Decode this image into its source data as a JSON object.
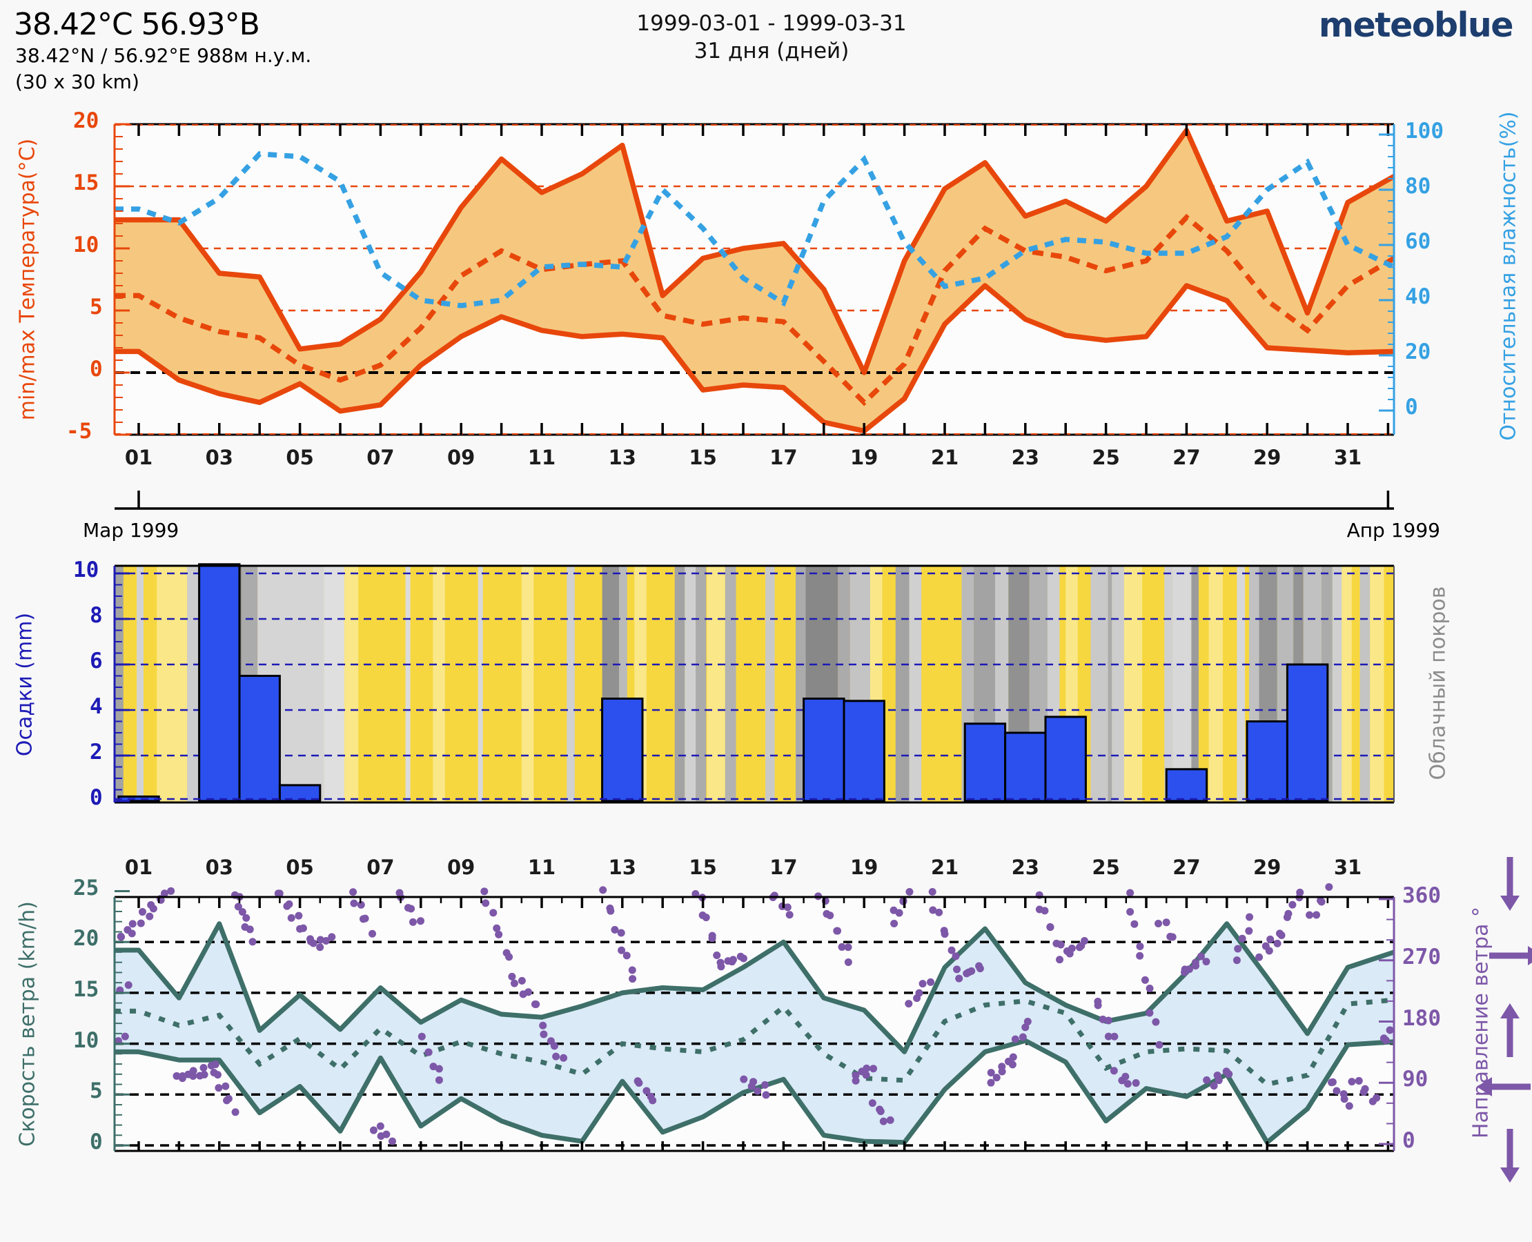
{
  "header": {
    "title": "38.42°С 56.93°В",
    "subtitle": "38.42°N / 56.92°E   988м н.у.м.",
    "area": "(30 x 30 km)",
    "date_range": "1999-03-01 - 1999-03-31",
    "days_count": "31 дня (дней)",
    "logo": "meteoblue"
  },
  "timeline": {
    "start_label": "Мар 1999",
    "end_label": "Апр 1999"
  },
  "day_labels": [
    "01",
    "03",
    "05",
    "07",
    "09",
    "11",
    "13",
    "15",
    "17",
    "19",
    "21",
    "23",
    "25",
    "27",
    "29",
    "31"
  ],
  "colors": {
    "orange": "#e8470b",
    "band_orange": "#f6c87f",
    "blue_hum": "#35a1e3",
    "navy": "#1d1bb5",
    "bar_blue": "#2b50ee",
    "yellow": "#f6d73f",
    "pale_yellow": "#fae788",
    "gray_label": "#8c8c8c",
    "teal": "#3e6f69",
    "wind_band": "#daeaf6",
    "purple": "#7d57a8",
    "black": "#000000",
    "logo_blue": "#1d3e6e"
  },
  "chart_data": [
    {
      "type": "area",
      "name": "temperature-humidity",
      "ylabel_left": "min/max Температура(°C)",
      "ylabel_right": "Относительная влажность(%)",
      "yticks_left": [
        20,
        15,
        10,
        5,
        0,
        -5
      ],
      "ylim_left": [
        -5,
        20
      ],
      "yticks_right": [
        100,
        80,
        60,
        40,
        20,
        0
      ],
      "ylim_right": [
        0,
        100
      ],
      "x_days": 31,
      "series": [
        {
          "name": "tmax",
          "values": [
            12.3,
            12.3,
            8.0,
            7.7,
            1.9,
            2.3,
            4.3,
            8.1,
            13.3,
            17.2,
            14.5,
            16.0,
            18.3,
            6.2,
            9.2,
            10.0,
            10.4,
            6.7,
            0.0,
            9.0,
            14.8,
            16.9,
            12.6,
            13.8,
            12.2,
            15.0,
            19.5,
            12.2,
            13.0,
            4.8,
            13.7,
            15.8
          ]
        },
        {
          "name": "tmin",
          "values": [
            1.7,
            -0.6,
            -1.7,
            -2.4,
            -0.9,
            -3.1,
            -2.6,
            0.6,
            2.9,
            4.5,
            3.4,
            2.9,
            3.1,
            2.8,
            -1.4,
            -1.0,
            -1.2,
            -4.0,
            -4.7,
            -2.1,
            3.9,
            7.0,
            4.3,
            3.0,
            2.6,
            2.9,
            7.0,
            5.8,
            2.0,
            1.8,
            1.6,
            1.7
          ]
        },
        {
          "name": "tmean",
          "values": [
            6.2,
            4.4,
            3.3,
            2.8,
            0.6,
            -0.6,
            0.6,
            3.6,
            7.8,
            9.8,
            8.3,
            8.7,
            9.0,
            4.6,
            3.9,
            4.4,
            4.1,
            0.9,
            -2.4,
            0.7,
            8.2,
            11.6,
            9.8,
            9.3,
            8.2,
            9.0,
            12.5,
            9.8,
            5.8,
            3.4,
            7.0,
            9.2
          ]
        },
        {
          "name": "humidity",
          "values": [
            73,
            68,
            77,
            93,
            92,
            83,
            50,
            40,
            38,
            40,
            52,
            53,
            52,
            80,
            66,
            48,
            39,
            76,
            91,
            61,
            45,
            48,
            58,
            62,
            61,
            57,
            57,
            63,
            80,
            90,
            60,
            52
          ]
        }
      ]
    },
    {
      "type": "bar",
      "name": "precipitation-cloud",
      "ylabel_left": "Осадки (mm)",
      "ylabel_right": "Облачный покров",
      "yticks_left": [
        10,
        8,
        6,
        4,
        2,
        0
      ],
      "ylim_left": [
        0,
        10.5
      ],
      "values": [
        0.2,
        0,
        10.9,
        5.5,
        0.7,
        0,
        0,
        0,
        0,
        0,
        0,
        0,
        4.5,
        0,
        0,
        0,
        0,
        4.5,
        4.4,
        0,
        0,
        3.4,
        3.0,
        3.7,
        0,
        0,
        1.4,
        0,
        3.5,
        6.0,
        0
      ],
      "cloud_stripes": [
        [
          0.42,
          0.62,
          0.5
        ],
        [
          0.95,
          1.12,
          0.18
        ],
        [
          2.2,
          2.55,
          0.22
        ],
        [
          2.8,
          3.05,
          0.3
        ],
        [
          3.05,
          3.55,
          0.68
        ],
        [
          3.55,
          3.95,
          0.45
        ],
        [
          3.95,
          5.6,
          0.17
        ],
        [
          5.6,
          6.1,
          0.1
        ],
        [
          7.62,
          7.74,
          0.12
        ],
        [
          9.42,
          9.54,
          0.15
        ],
        [
          11.62,
          11.82,
          0.2
        ],
        [
          12.5,
          12.92,
          0.62
        ],
        [
          12.92,
          13.12,
          0.35
        ],
        [
          14.3,
          14.55,
          0.5
        ],
        [
          14.55,
          14.82,
          0.2
        ],
        [
          14.82,
          15.08,
          0.45
        ],
        [
          15.55,
          15.82,
          0.4
        ],
        [
          16.55,
          16.78,
          0.25
        ],
        [
          17.3,
          17.55,
          0.45
        ],
        [
          17.55,
          18.35,
          0.68
        ],
        [
          18.35,
          18.65,
          0.45
        ],
        [
          18.65,
          19.15,
          0.28
        ],
        [
          19.78,
          20.12,
          0.5
        ],
        [
          20.12,
          20.42,
          0.2
        ],
        [
          21.42,
          21.72,
          0.35
        ],
        [
          21.72,
          22.25,
          0.5
        ],
        [
          22.25,
          22.58,
          0.25
        ],
        [
          22.58,
          23.1,
          0.62
        ],
        [
          23.1,
          23.55,
          0.4
        ],
        [
          23.55,
          23.85,
          0.2
        ],
        [
          24.62,
          25.05,
          0.25
        ],
        [
          25.05,
          25.15,
          0.45
        ],
        [
          25.15,
          25.45,
          0.22
        ],
        [
          26.45,
          26.65,
          0.2
        ],
        [
          26.65,
          27.12,
          0.15
        ],
        [
          27.12,
          27.3,
          0.55
        ],
        [
          28.25,
          28.45,
          0.15
        ],
        [
          28.55,
          28.8,
          0.3
        ],
        [
          28.8,
          29.25,
          0.6
        ],
        [
          29.25,
          29.65,
          0.35
        ],
        [
          29.65,
          29.9,
          0.6
        ],
        [
          29.9,
          30.35,
          0.3
        ],
        [
          30.35,
          30.62,
          0.45
        ],
        [
          30.62,
          30.85,
          0.2
        ],
        [
          31.3,
          31.55,
          0.28
        ]
      ],
      "pale_stripes": [
        [
          1.45,
          2.2
        ],
        [
          6.1,
          6.45
        ],
        [
          8.3,
          8.6
        ],
        [
          10.5,
          10.8
        ],
        [
          13.3,
          13.6
        ],
        [
          15.1,
          15.55
        ],
        [
          19.15,
          19.45
        ],
        [
          24.0,
          24.3
        ],
        [
          25.45,
          25.9
        ],
        [
          27.55,
          27.9
        ],
        [
          30.85,
          31.1
        ],
        [
          31.55,
          31.9
        ]
      ]
    },
    {
      "type": "line",
      "name": "wind",
      "ylabel_left": "Скорость ветра (km/h)",
      "ylabel_right": "Направление ветра °",
      "yticks_left": [
        25,
        20,
        15,
        10,
        5,
        0
      ],
      "ylim_left": [
        0,
        25
      ],
      "yticks_right": [
        360,
        270,
        180,
        90,
        0
      ],
      "ylim_right": [
        0,
        360
      ],
      "series": [
        {
          "name": "wind_max",
          "values": [
            19.2,
            14.5,
            21.8,
            11.3,
            14.8,
            11.4,
            15.5,
            12.1,
            14.3,
            12.9,
            12.6,
            13.7,
            15.0,
            15.5,
            15.3,
            17.5,
            20.0,
            14.5,
            13.3,
            9.2,
            17.5,
            21.3,
            16.0,
            13.8,
            12.2,
            13.0,
            17.0,
            21.8,
            16.5,
            11.0,
            17.5,
            19.0
          ]
        },
        {
          "name": "wind_min",
          "values": [
            9.2,
            8.4,
            8.4,
            3.2,
            5.8,
            1.4,
            8.6,
            1.9,
            4.6,
            2.4,
            1.0,
            0.4,
            6.3,
            1.3,
            2.8,
            5.2,
            6.5,
            1.0,
            0.4,
            0.3,
            5.5,
            9.2,
            10.3,
            8.2,
            2.4,
            5.6,
            4.8,
            7.0,
            0.3,
            3.6,
            9.9,
            10.2
          ]
        },
        {
          "name": "wind_mean",
          "values": [
            13.2,
            11.8,
            12.8,
            8.0,
            10.5,
            7.5,
            11.5,
            8.8,
            10.2,
            9.0,
            8.2,
            7.0,
            10.0,
            9.5,
            9.2,
            10.4,
            13.6,
            9.0,
            6.6,
            6.4,
            12.2,
            13.8,
            14.2,
            13.0,
            7.6,
            9.2,
            9.5,
            9.3,
            6.0,
            6.9,
            13.9,
            14.3
          ]
        }
      ],
      "direction_segments": [
        [
          0.42,
          0.9,
          300,
          318,
          6
        ],
        [
          0.45,
          0.7,
          236,
          228,
          3
        ],
        [
          0.5,
          0.62,
          153,
          158,
          2
        ],
        [
          1.05,
          1.75,
          330,
          372,
          9
        ],
        [
          1.95,
          2.95,
          97,
          112,
          12
        ],
        [
          2.95,
          3.35,
          97,
          52,
          6
        ],
        [
          3.4,
          3.8,
          370,
          302,
          8
        ],
        [
          4.45,
          5.3,
          372,
          296,
          10
        ],
        [
          5.35,
          5.75,
          290,
          304,
          5
        ],
        [
          6.3,
          6.75,
          368,
          315,
          6
        ],
        [
          6.85,
          7.25,
          26,
          6,
          5
        ],
        [
          7.45,
          7.95,
          370,
          322,
          6
        ],
        [
          8.05,
          8.5,
          152,
          96,
          6
        ],
        [
          9.55,
          10.3,
          372,
          252,
          8
        ],
        [
          10.35,
          10.9,
          242,
          202,
          6
        ],
        [
          11.0,
          11.5,
          172,
          122,
          6
        ],
        [
          12.55,
          13.3,
          368,
          242,
          9
        ],
        [
          13.35,
          13.8,
          96,
          62,
          5
        ],
        [
          14.85,
          15.35,
          372,
          282,
          7
        ],
        [
          15.4,
          16.0,
          262,
          276,
          7
        ],
        [
          16.05,
          16.6,
          92,
          78,
          6
        ],
        [
          16.7,
          17.2,
          368,
          338,
          5
        ],
        [
          17.9,
          18.65,
          366,
          272,
          9
        ],
        [
          18.75,
          19.2,
          95,
          112,
          6
        ],
        [
          19.25,
          19.6,
          60,
          30,
          5
        ],
        [
          19.7,
          20.1,
          330,
          368,
          6
        ],
        [
          20.15,
          20.6,
          205,
          242,
          5
        ],
        [
          20.65,
          21.35,
          365,
          258,
          8
        ],
        [
          21.4,
          21.9,
          246,
          262,
          6
        ],
        [
          22.1,
          22.75,
          95,
          125,
          8
        ],
        [
          22.8,
          23.1,
          150,
          180,
          4
        ],
        [
          23.3,
          23.85,
          362,
          288,
          7
        ],
        [
          23.9,
          24.5,
          276,
          296,
          7
        ],
        [
          24.75,
          25.2,
          212,
          152,
          6
        ],
        [
          25.25,
          25.7,
          102,
          88,
          5
        ],
        [
          25.55,
          26.3,
          368,
          150,
          10
        ],
        [
          26.35,
          26.7,
          330,
          300,
          4
        ],
        [
          26.9,
          27.45,
          252,
          274,
          7
        ],
        [
          27.55,
          28.05,
          88,
          106,
          6
        ],
        [
          28.2,
          28.6,
          272,
          330,
          5
        ],
        [
          28.85,
          29.4,
          280,
          310,
          7
        ],
        [
          29.45,
          29.85,
          330,
          372,
          5
        ],
        [
          30.1,
          30.5,
          332,
          372,
          5
        ],
        [
          30.55,
          31.05,
          95,
          58,
          6
        ],
        [
          31.15,
          31.7,
          95,
          62,
          6
        ],
        [
          31.85,
          32.3,
          150,
          178,
          5
        ]
      ],
      "direction_arrows": [
        "down",
        "right",
        "up",
        "left",
        "down"
      ]
    }
  ]
}
